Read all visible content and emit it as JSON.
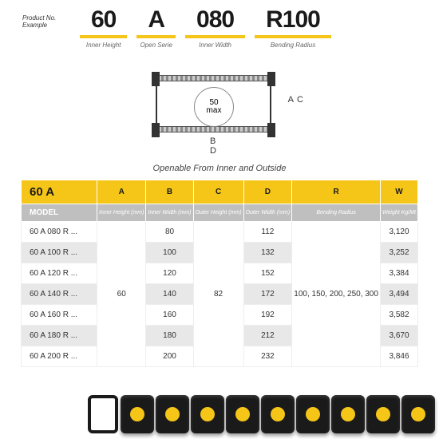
{
  "header": {
    "pne": "Product No. Example",
    "cols": [
      {
        "val": "60",
        "lab": "Inner Height"
      },
      {
        "val": "A",
        "lab": "Open Serie"
      },
      {
        "val": "080",
        "lab": "Inner Width"
      },
      {
        "val": "R100",
        "lab": "Bending Radius"
      }
    ]
  },
  "diagram": {
    "circ1": "50",
    "circ2": "max",
    "A": "A",
    "C": "C",
    "B": "B",
    "D": "D"
  },
  "caption": "Openable From Inner and Outside",
  "thead": [
    "60 A",
    "A",
    "B",
    "C",
    "D",
    "R",
    "W"
  ],
  "sub": [
    "MODEL",
    "Inner Height (mm)",
    "Inner Width (mm)",
    "Outer Height (mm)",
    "Outer Width (mm)",
    "Bending Radius",
    "Weight Kg/Mt"
  ],
  "mergeA": "60",
  "mergeC": "82",
  "mergeR": "100, 150, 200, 250, 300",
  "rows": [
    {
      "m": "60 A 080 R ...",
      "b": "80",
      "d": "112",
      "w": "3,120",
      "alt": false
    },
    {
      "m": "60 A 100 R ...",
      "b": "100",
      "d": "132",
      "w": "3,252",
      "alt": true
    },
    {
      "m": "60 A 120 R ...",
      "b": "120",
      "d": "152",
      "w": "3,384",
      "alt": false
    },
    {
      "m": "60 A 140 R ...",
      "b": "140",
      "d": "172",
      "w": "3,494",
      "alt": true
    },
    {
      "m": "60 A 160 R ...",
      "b": "160",
      "d": "192",
      "w": "3,582",
      "alt": false
    },
    {
      "m": "60 A 180 R ...",
      "b": "180",
      "d": "212",
      "w": "3,670",
      "alt": true
    },
    {
      "m": "60 A 200 R ...",
      "b": "200",
      "d": "232",
      "w": "3,846",
      "alt": false
    }
  ],
  "colors": {
    "accent": "#f5c518",
    "gray": "#bfbfbf"
  }
}
